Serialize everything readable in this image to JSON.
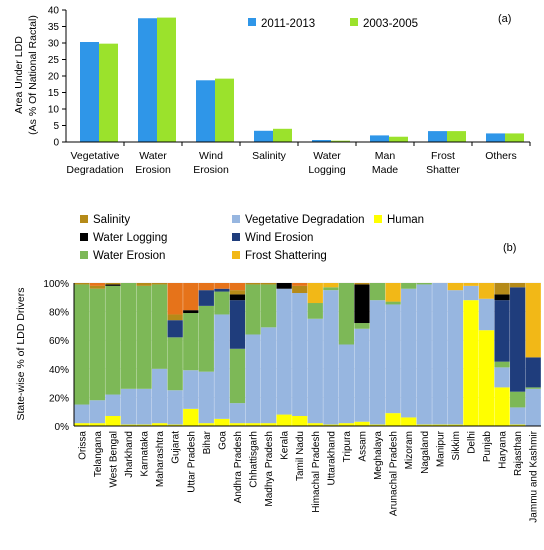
{
  "chart_data": [
    {
      "type": "bar",
      "panel_label": "(a)",
      "ylabel_line1": "Area Under LDD",
      "ylabel_line2": "(As % Of National Ractal)",
      "ylim": [
        0,
        40
      ],
      "yticks": [
        0,
        5,
        10,
        15,
        20,
        25,
        30,
        35,
        40
      ],
      "grid": false,
      "legend_position": "top-right",
      "categories": [
        [
          "Vegetative",
          "Degradation"
        ],
        [
          "Water",
          "Erosion"
        ],
        [
          "Wind",
          "Erosion"
        ],
        [
          "Salinity"
        ],
        [
          "Water",
          "Logging"
        ],
        [
          "Man",
          "Made"
        ],
        [
          "Frost",
          "Shatter"
        ],
        [
          "Others"
        ]
      ],
      "series": [
        {
          "name": "2011-2013",
          "color": "#2f96e8",
          "values": [
            30.3,
            37.5,
            18.7,
            3.4,
            0.6,
            2.0,
            3.3,
            2.6
          ]
        },
        {
          "name": "2003-2005",
          "color": "#9be22c",
          "values": [
            29.8,
            37.7,
            19.2,
            4.0,
            0.4,
            1.6,
            3.3,
            2.6
          ]
        }
      ]
    },
    {
      "type": "bar",
      "stacked": true,
      "panel_label": "(b)",
      "ylabel": "State-wise % of  LDD  Drivers",
      "ylim": [
        0,
        100
      ],
      "yticks": [
        "0%",
        "20%",
        "40%",
        "60%",
        "80%",
        "100%"
      ],
      "legend_position": "top",
      "legend_col1": [
        "Salinity",
        "Water Logging",
        "Water Erosion"
      ],
      "legend_col2": [
        "Vegetative Degradation",
        "Wind Erosion",
        "Frost Shattering"
      ],
      "legend_col3": [
        "Human"
      ],
      "series_order": [
        "Human",
        "Vegetative Degradation",
        "Water Erosion",
        "Wind Erosion",
        "Water Logging",
        "Salinity",
        "Frost Shattering"
      ],
      "colors": {
        "Human": "#ffff00",
        "Vegetative Degradation": "#97b6e0",
        "Water Erosion": "#7db857",
        "Wind Erosion": "#1f3d7c",
        "Water Logging": "#000000",
        "Salinity": "#b58a18",
        "Frost Shattering": "#f2b817",
        "Other": "#e6731a"
      },
      "states": [
        {
          "name": "Orissa",
          "values": [
            2,
            13,
            84,
            0,
            0,
            1,
            0,
            0
          ]
        },
        {
          "name": "Telangana",
          "values": [
            2,
            16,
            78,
            0,
            0,
            2,
            0,
            2
          ]
        },
        {
          "name": "West Bengal",
          "values": [
            7,
            15,
            76,
            0,
            1,
            1,
            0,
            0
          ]
        },
        {
          "name": "Jharkhand",
          "values": [
            1,
            25,
            74,
            0,
            0,
            0,
            0,
            0
          ]
        },
        {
          "name": "Karnataka",
          "values": [
            1,
            25,
            72,
            0,
            0,
            2,
            0,
            0
          ]
        },
        {
          "name": "Maharashtra",
          "values": [
            2,
            38,
            59,
            0,
            0,
            1,
            0,
            0
          ]
        },
        {
          "name": "Gujarat",
          "values": [
            1,
            24,
            37,
            12,
            0,
            4,
            0,
            22
          ]
        },
        {
          "name": "Uttar Pradesh",
          "values": [
            12,
            27,
            40,
            0,
            2,
            0,
            0,
            19
          ]
        },
        {
          "name": "Bihar",
          "values": [
            2,
            36,
            46,
            11,
            0,
            0,
            0,
            5
          ]
        },
        {
          "name": "Goa",
          "values": [
            5,
            73,
            16,
            2,
            0,
            0,
            0,
            4
          ]
        },
        {
          "name": "Andhra Pradesh",
          "values": [
            2,
            14,
            38,
            34,
            4,
            3,
            0,
            5
          ]
        },
        {
          "name": "Chhattisgarh",
          "values": [
            2,
            62,
            35,
            0,
            0,
            1,
            0,
            0
          ]
        },
        {
          "name": "Madhya Pradesh",
          "values": [
            2,
            67,
            30,
            0,
            0,
            1,
            0,
            0
          ]
        },
        {
          "name": "Kerala",
          "values": [
            8,
            88,
            0,
            0,
            4,
            0,
            0,
            0
          ]
        },
        {
          "name": "Tamil Nadu",
          "values": [
            7,
            86,
            0,
            0,
            0,
            5,
            0,
            2
          ]
        },
        {
          "name": "Himachal Pradesh",
          "values": [
            2,
            73,
            11,
            0,
            0,
            0,
            14,
            0
          ]
        },
        {
          "name": "Uttarakhand",
          "values": [
            1,
            94,
            2,
            0,
            0,
            0,
            3,
            0
          ]
        },
        {
          "name": "Tripura",
          "values": [
            2,
            55,
            43,
            0,
            0,
            0,
            0,
            0
          ]
        },
        {
          "name": "Assam",
          "values": [
            3,
            65,
            4,
            0,
            27,
            1,
            0,
            0
          ]
        },
        {
          "name": "Meghalaya",
          "values": [
            1,
            87,
            12,
            0,
            0,
            0,
            0,
            0
          ]
        },
        {
          "name": "Arunachal Pradesh",
          "values": [
            9,
            76,
            2,
            0,
            0,
            0,
            13,
            0
          ]
        },
        {
          "name": "Mizoram",
          "values": [
            6,
            90,
            4,
            0,
            0,
            0,
            0,
            0
          ]
        },
        {
          "name": "Nagaland",
          "values": [
            1,
            98,
            1,
            0,
            0,
            0,
            0,
            0
          ]
        },
        {
          "name": "Manipur",
          "values": [
            1,
            99,
            0,
            0,
            0,
            0,
            0,
            0
          ]
        },
        {
          "name": "Sikkim",
          "values": [
            1,
            94,
            0,
            0,
            0,
            0,
            5,
            0
          ]
        },
        {
          "name": "Delhi",
          "values": [
            88,
            10,
            0,
            0,
            0,
            0,
            2,
            0
          ]
        },
        {
          "name": "Punjab",
          "values": [
            67,
            22,
            0,
            0,
            0,
            0,
            11,
            0
          ]
        },
        {
          "name": "Haryana",
          "values": [
            27,
            14,
            4,
            43,
            4,
            8,
            0,
            0
          ]
        },
        {
          "name": "Rajasthan",
          "values": [
            1,
            12,
            11,
            73,
            0,
            3,
            0,
            0
          ]
        },
        {
          "name": "Jammu and Kashmir",
          "values": [
            0,
            26,
            1,
            21,
            0,
            0,
            52,
            0
          ]
        }
      ]
    }
  ]
}
